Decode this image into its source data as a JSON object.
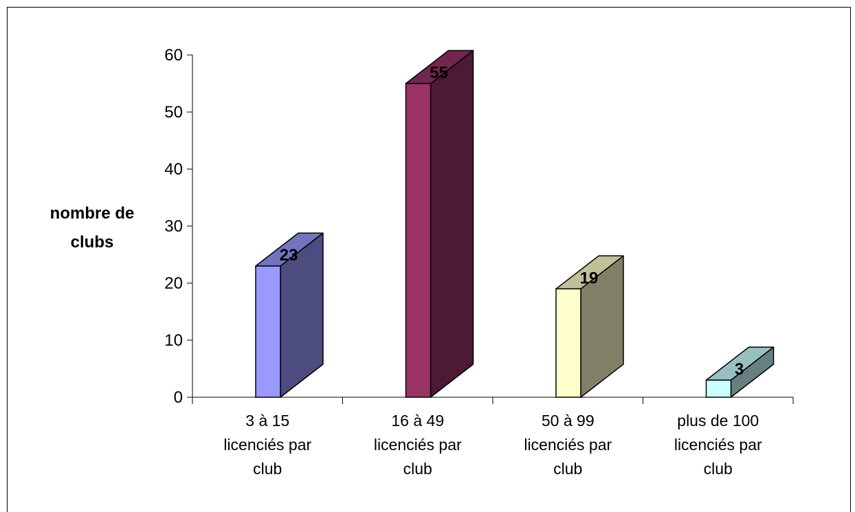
{
  "chart_data": {
    "type": "bar",
    "title": "",
    "xlabel": "",
    "ylabel": [
      "nombre de",
      "clubs"
    ],
    "categories": [
      [
        "3 à 15",
        "licenciés par",
        "club"
      ],
      [
        "16 à 49",
        "licenciés par",
        "club"
      ],
      [
        "50 à 99",
        "licenciés par",
        "club"
      ],
      [
        "plus de 100",
        "licenciés par",
        "club"
      ]
    ],
    "values": [
      23,
      55,
      19,
      3
    ],
    "ylim": [
      0,
      60
    ],
    "yticks": [
      0,
      10,
      20,
      30,
      40,
      50,
      60
    ],
    "grid": false,
    "legend": "none",
    "style": "3d-column",
    "bar_colors": [
      {
        "front": "#9999ff",
        "side": "#4c4c80",
        "top": "#7373c0"
      },
      {
        "front": "#993366",
        "side": "#4d1a33",
        "top": "#73264d"
      },
      {
        "front": "#ffffcc",
        "side": "#808066",
        "top": "#c0c099"
      },
      {
        "front": "#ccffff",
        "side": "#668080",
        "top": "#99c0c0"
      }
    ]
  }
}
